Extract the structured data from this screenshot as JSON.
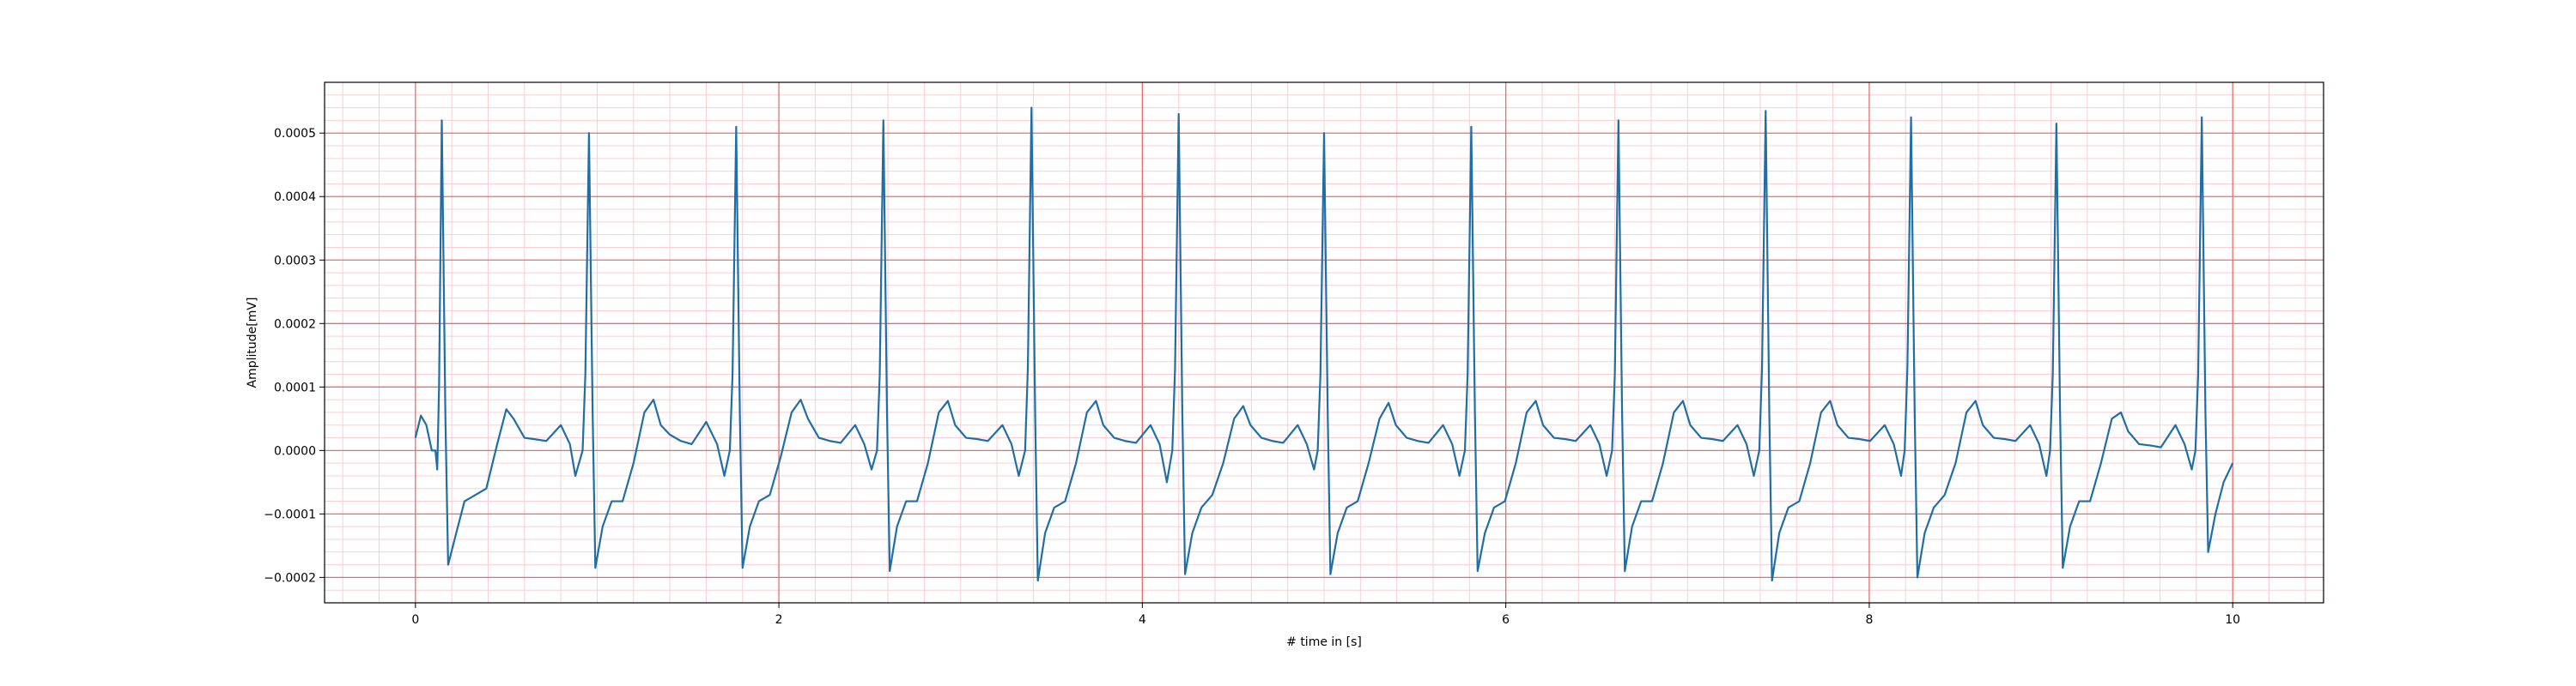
{
  "chart_data": {
    "type": "line",
    "title": "",
    "xlabel": "# time in [s]",
    "ylabel": "Amplitude[mV]",
    "xlim": [
      -0.5,
      10.5
    ],
    "ylim": [
      -0.00024,
      0.00058
    ],
    "grid": "on (major red, minor pink)",
    "legend": "none",
    "colors": {
      "line": "#1f6ea6",
      "major_grid": "#ef6b6b",
      "minor_grid": "#f8cfd6",
      "axes": "#000000"
    },
    "x_ticks": [
      {
        "value": 0,
        "label": "0"
      },
      {
        "value": 2,
        "label": "2"
      },
      {
        "value": 4,
        "label": "4"
      },
      {
        "value": 6,
        "label": "6"
      },
      {
        "value": 8,
        "label": "8"
      },
      {
        "value": 10,
        "label": "10"
      }
    ],
    "y_ticks": [
      {
        "value": -0.0002,
        "label": "−0.0002"
      },
      {
        "value": -0.0001,
        "label": "−0.0001"
      },
      {
        "value": 0.0,
        "label": "0.0000"
      },
      {
        "value": 0.0001,
        "label": "0.0001"
      },
      {
        "value": 0.0002,
        "label": "0.0002"
      },
      {
        "value": 0.0003,
        "label": "0.0003"
      },
      {
        "value": 0.0004,
        "label": "0.0004"
      },
      {
        "value": 0.0005,
        "label": "0.0005"
      }
    ],
    "beats": [
      {
        "r_time": 0.145,
        "r_peak": 0.00052,
        "s_trough": -0.00018,
        "t_peak": 6.5e-05
      },
      {
        "r_time": 0.955,
        "r_peak": 0.0005,
        "s_trough": -0.000185,
        "t_peak": 8e-05
      },
      {
        "r_time": 1.765,
        "r_peak": 0.00051,
        "s_trough": -0.000185,
        "t_peak": 8e-05
      },
      {
        "r_time": 2.575,
        "r_peak": 0.00052,
        "s_trough": -0.00019,
        "t_peak": 7.8e-05
      },
      {
        "r_time": 3.39,
        "r_peak": 0.00054,
        "s_trough": -0.000205,
        "t_peak": 7.8e-05
      },
      {
        "r_time": 4.2,
        "r_peak": 0.00053,
        "s_trough": -0.000195,
        "t_peak": 7e-05
      },
      {
        "r_time": 5.0,
        "r_peak": 0.0005,
        "s_trough": -0.000195,
        "t_peak": 7.5e-05
      },
      {
        "r_time": 5.81,
        "r_peak": 0.00051,
        "s_trough": -0.00019,
        "t_peak": 7.8e-05
      },
      {
        "r_time": 6.62,
        "r_peak": 0.00052,
        "s_trough": -0.00019,
        "t_peak": 7.8e-05
      },
      {
        "r_time": 7.43,
        "r_peak": 0.000535,
        "s_trough": -0.000205,
        "t_peak": 7.8e-05
      },
      {
        "r_time": 8.23,
        "r_peak": 0.000525,
        "s_trough": -0.0002,
        "t_peak": 7.8e-05
      },
      {
        "r_time": 9.03,
        "r_peak": 0.000515,
        "s_trough": -0.000185,
        "t_peak": 6e-05
      },
      {
        "r_time": 9.83,
        "r_peak": 0.000525,
        "s_trough": -0.00016,
        "t_peak": 6e-05
      }
    ],
    "series": [
      {
        "x": [
          0.0,
          0.03,
          0.06,
          0.09,
          0.11,
          0.12,
          0.13,
          0.145,
          0.165,
          0.18,
          0.22,
          0.27,
          0.33,
          0.39,
          0.45,
          0.5,
          0.54,
          0.6,
          0.65,
          0.72,
          0.8,
          0.85,
          0.88,
          0.92,
          0.935,
          0.955,
          0.975,
          0.99,
          1.03,
          1.08,
          1.14,
          1.2,
          1.26,
          1.31,
          1.35,
          1.4,
          1.46,
          1.52,
          1.6,
          1.66,
          1.7,
          1.73,
          1.745,
          1.765,
          1.785,
          1.8,
          1.84,
          1.89,
          1.95,
          2.01,
          2.07,
          2.12,
          2.16,
          2.22,
          2.28,
          2.34,
          2.42,
          2.47,
          2.51,
          2.54,
          2.555,
          2.575,
          2.595,
          2.61,
          2.65,
          2.7,
          2.76,
          2.82,
          2.88,
          2.93,
          2.97,
          3.03,
          3.09,
          3.15,
          3.23,
          3.28,
          3.32,
          3.355,
          3.37,
          3.39,
          3.41,
          3.425,
          3.465,
          3.515,
          3.575,
          3.635,
          3.695,
          3.745,
          3.785,
          3.845,
          3.905,
          3.965,
          4.045,
          4.095,
          4.135,
          4.165,
          4.18,
          4.2,
          4.22,
          4.235,
          4.275,
          4.325,
          4.385,
          4.445,
          4.505,
          4.555,
          4.595,
          4.655,
          4.715,
          4.775,
          4.855,
          4.905,
          4.945,
          4.965,
          4.98,
          5.0,
          5.02,
          5.035,
          5.075,
          5.125,
          5.185,
          5.245,
          5.305,
          5.355,
          5.395,
          5.455,
          5.515,
          5.575,
          5.655,
          5.705,
          5.745,
          5.775,
          5.79,
          5.81,
          5.83,
          5.845,
          5.885,
          5.935,
          5.995,
          6.055,
          6.115,
          6.165,
          6.205,
          6.265,
          6.325,
          6.385,
          6.465,
          6.515,
          6.555,
          6.585,
          6.6,
          6.62,
          6.64,
          6.655,
          6.695,
          6.745,
          6.805,
          6.865,
          6.925,
          6.975,
          7.015,
          7.075,
          7.135,
          7.195,
          7.275,
          7.325,
          7.365,
          7.395,
          7.41,
          7.43,
          7.45,
          7.465,
          7.505,
          7.555,
          7.615,
          7.675,
          7.735,
          7.785,
          7.825,
          7.885,
          7.945,
          8.005,
          8.085,
          8.135,
          8.175,
          8.195,
          8.21,
          8.23,
          8.25,
          8.265,
          8.305,
          8.355,
          8.415,
          8.475,
          8.535,
          8.585,
          8.625,
          8.685,
          8.745,
          8.805,
          8.885,
          8.935,
          8.975,
          8.995,
          9.01,
          9.03,
          9.05,
          9.065,
          9.105,
          9.155,
          9.215,
          9.275,
          9.335,
          9.385,
          9.425,
          9.485,
          9.545,
          9.605,
          9.685,
          9.735,
          9.775,
          9.795,
          9.81,
          9.83,
          9.85,
          9.865,
          9.905,
          9.95,
          10.0
        ],
        "y": [
          2e-05,
          5.5e-05,
          4e-05,
          0.0,
          0.0,
          -3e-05,
          0.0001,
          0.00052,
          5e-05,
          -0.00018,
          -0.000135,
          -8e-05,
          -7e-05,
          -6e-05,
          1e-05,
          6.5e-05,
          5e-05,
          2e-05,
          1.8e-05,
          1.5e-05,
          4e-05,
          1e-05,
          -4e-05,
          0.0,
          0.00012,
          0.0005,
          6e-05,
          -0.000185,
          -0.00012,
          -8e-05,
          -8e-05,
          -2e-05,
          6e-05,
          8e-05,
          4e-05,
          2.5e-05,
          1.5e-05,
          1e-05,
          4.5e-05,
          1e-05,
          -4e-05,
          0.0,
          0.00012,
          0.00051,
          6e-05,
          -0.000185,
          -0.00012,
          -8e-05,
          -7e-05,
          -1e-05,
          6e-05,
          8e-05,
          5e-05,
          2e-05,
          1.5e-05,
          1.2e-05,
          4e-05,
          1e-05,
          -3e-05,
          0.0,
          0.00012,
          0.00052,
          6e-05,
          -0.00019,
          -0.00012,
          -8e-05,
          -8e-05,
          -2e-05,
          6e-05,
          7.8e-05,
          4e-05,
          2e-05,
          1.8e-05,
          1.5e-05,
          4e-05,
          1e-05,
          -4e-05,
          0.0,
          0.00013,
          0.00054,
          6e-05,
          -0.000205,
          -0.00013,
          -9e-05,
          -8e-05,
          -2e-05,
          6e-05,
          7.8e-05,
          4e-05,
          2e-05,
          1.5e-05,
          1.2e-05,
          4e-05,
          1e-05,
          -5e-05,
          0.0,
          0.00013,
          0.00053,
          6e-05,
          -0.000195,
          -0.00013,
          -9e-05,
          -7e-05,
          -2e-05,
          5e-05,
          7e-05,
          4e-05,
          2e-05,
          1.5e-05,
          1.2e-05,
          4e-05,
          1e-05,
          -3e-05,
          0.0,
          0.00012,
          0.0005,
          6e-05,
          -0.000195,
          -0.00013,
          -9e-05,
          -8e-05,
          -2e-05,
          5e-05,
          7.5e-05,
          4e-05,
          2e-05,
          1.5e-05,
          1.2e-05,
          4e-05,
          1e-05,
          -4e-05,
          0.0,
          0.00012,
          0.00051,
          6e-05,
          -0.00019,
          -0.00013,
          -9e-05,
          -8e-05,
          -2e-05,
          6e-05,
          7.8e-05,
          4e-05,
          2e-05,
          1.8e-05,
          1.5e-05,
          4e-05,
          1e-05,
          -4e-05,
          0.0,
          0.00012,
          0.00052,
          6e-05,
          -0.00019,
          -0.00012,
          -8e-05,
          -8e-05,
          -2e-05,
          6e-05,
          7.8e-05,
          4e-05,
          2e-05,
          1.8e-05,
          1.5e-05,
          4e-05,
          1e-05,
          -4e-05,
          0.0,
          0.00013,
          0.000535,
          6e-05,
          -0.000205,
          -0.00013,
          -9e-05,
          -8e-05,
          -2e-05,
          6e-05,
          7.8e-05,
          4e-05,
          2e-05,
          1.8e-05,
          1.5e-05,
          4e-05,
          1e-05,
          -4e-05,
          0.0,
          0.00013,
          0.000525,
          6e-05,
          -0.0002,
          -0.00013,
          -9e-05,
          -7e-05,
          -2e-05,
          6e-05,
          7.8e-05,
          4e-05,
          2e-05,
          1.8e-05,
          1.5e-05,
          4e-05,
          1e-05,
          -4e-05,
          0.0,
          0.00012,
          0.000515,
          6e-05,
          -0.000185,
          -0.00012,
          -8e-05,
          -8e-05,
          -2e-05,
          5e-05,
          6e-05,
          3e-05,
          1e-05,
          8e-06,
          5e-06,
          4e-05,
          1e-05,
          -3e-05,
          0.0,
          0.00012,
          0.000525,
          6e-05,
          -0.00016,
          -0.0001,
          -5e-05,
          -2e-05
        ]
      }
    ]
  }
}
